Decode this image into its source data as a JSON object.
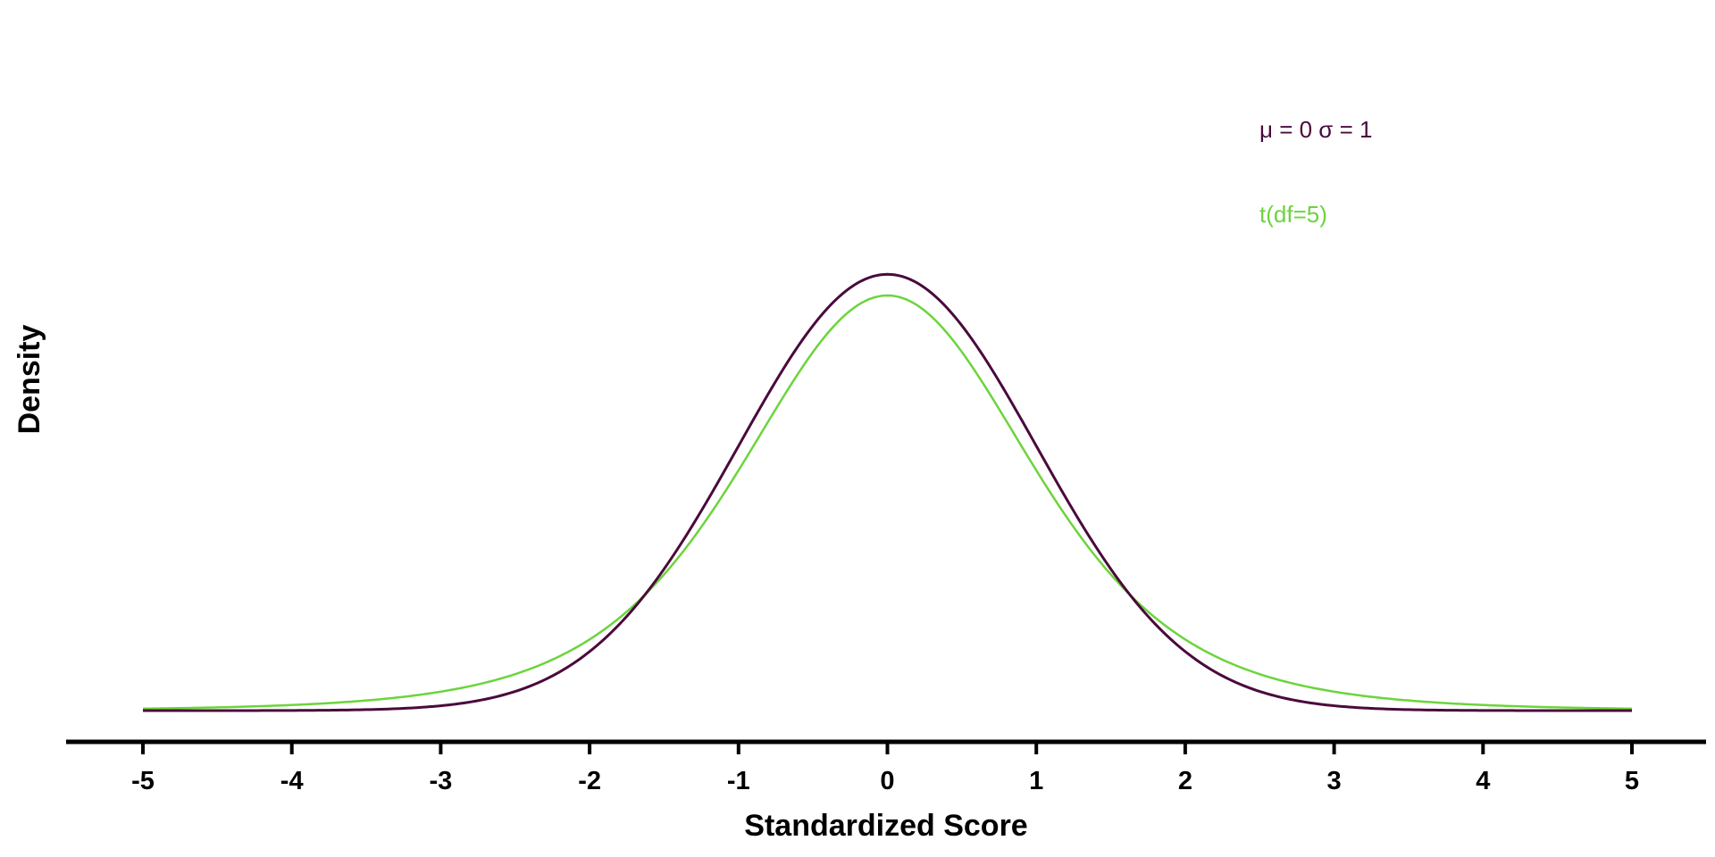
{
  "chart_data": {
    "type": "line",
    "title": "",
    "xlabel": "Standardized Score",
    "ylabel": "Density",
    "xlim": [
      -5,
      5
    ],
    "ylim": [
      0,
      0.4
    ],
    "xticks": [
      "-5",
      "-4",
      "-3",
      "-2",
      "-1",
      "0",
      "1",
      "2",
      "3",
      "4",
      "5"
    ],
    "grid": false,
    "legend_position": "top-right",
    "series": [
      {
        "name": "μ = 0  σ = 1",
        "color": "#4a0a3c",
        "x": [
          -5,
          -4.5,
          -4,
          -3.5,
          -3,
          -2.5,
          -2,
          -1.75,
          -1.5,
          -1.25,
          -1,
          -0.75,
          -0.5,
          -0.25,
          0,
          0.25,
          0.5,
          0.75,
          1,
          1.25,
          1.5,
          1.75,
          2,
          2.5,
          3,
          3.5,
          4,
          4.5,
          5
        ],
        "y": [
          1.5e-06,
          1.6e-05,
          0.00013,
          0.00087,
          0.0044,
          0.0175,
          0.054,
          0.0863,
          0.1295,
          0.1826,
          0.242,
          0.3011,
          0.3521,
          0.3867,
          0.3989,
          0.3867,
          0.3521,
          0.3011,
          0.242,
          0.1826,
          0.1295,
          0.0863,
          0.054,
          0.0175,
          0.0044,
          0.00087,
          0.00013,
          1.6e-05,
          1.5e-06
        ]
      },
      {
        "name": "t(df=5)",
        "color": "#6cd43c",
        "x": [
          -5,
          -4.5,
          -4,
          -3.5,
          -3,
          -2.5,
          -2,
          -1.75,
          -1.5,
          -1.25,
          -1,
          -0.75,
          -0.5,
          -0.25,
          0,
          0.25,
          0.5,
          0.75,
          1,
          1.25,
          1.5,
          1.75,
          2,
          2.5,
          3,
          3.5,
          4,
          4.5,
          5
        ],
        "y": [
          0.0018,
          0.0029,
          0.0051,
          0.0094,
          0.0173,
          0.0332,
          0.0651,
          0.0888,
          0.1211,
          0.1631,
          0.2197,
          0.2773,
          0.3279,
          0.3663,
          0.3796,
          0.3663,
          0.3279,
          0.2773,
          0.2197,
          0.1631,
          0.1211,
          0.0888,
          0.0651,
          0.0332,
          0.0173,
          0.0094,
          0.0051,
          0.0029,
          0.0018
        ]
      }
    ]
  }
}
